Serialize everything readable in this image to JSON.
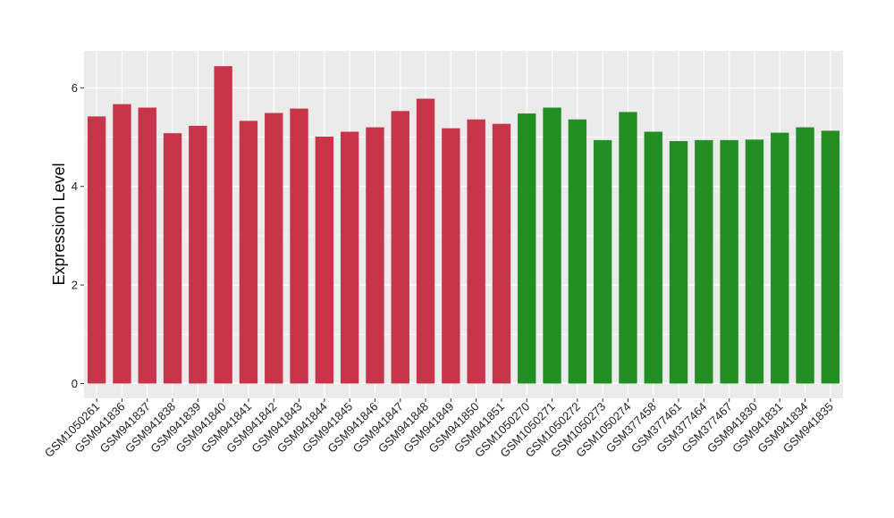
{
  "chart_data": {
    "type": "bar",
    "title": "",
    "xlabel": "",
    "ylabel": "Expression Level",
    "ylim": [
      -0.3,
      6.75
    ],
    "yticks": [
      0,
      2,
      4,
      6
    ],
    "grid": true,
    "legend": "none",
    "colors": {
      "group1": "#c8354b",
      "group2": "#238e23",
      "panel": "#ebebeb",
      "gridline": "#ffffff"
    },
    "categories": [
      "GSM1050261",
      "GSM941836",
      "GSM941837",
      "GSM941838",
      "GSM941839",
      "GSM941840",
      "GSM941841",
      "GSM941842",
      "GSM941843",
      "GSM941844",
      "GSM941845",
      "GSM941846",
      "GSM941847",
      "GSM941848",
      "GSM941849",
      "GSM941850",
      "GSM941851",
      "GSM1050270",
      "GSM1050271",
      "GSM1050272",
      "GSM1050273",
      "GSM1050274",
      "GSM377458",
      "GSM377461",
      "GSM377464",
      "GSM377467",
      "GSM941830",
      "GSM941831",
      "GSM941834",
      "GSM941835"
    ],
    "values": [
      5.42,
      5.67,
      5.6,
      5.08,
      5.23,
      6.44,
      5.33,
      5.49,
      5.58,
      5.01,
      5.11,
      5.2,
      5.53,
      5.78,
      5.18,
      5.36,
      5.27,
      5.48,
      5.6,
      5.36,
      4.94,
      5.51,
      5.11,
      4.92,
      4.94,
      4.94,
      4.95,
      5.09,
      5.2,
      5.13
    ],
    "groups": [
      1,
      1,
      1,
      1,
      1,
      1,
      1,
      1,
      1,
      1,
      1,
      1,
      1,
      1,
      1,
      1,
      1,
      2,
      2,
      2,
      2,
      2,
      2,
      2,
      2,
      2,
      2,
      2,
      2,
      2
    ]
  }
}
